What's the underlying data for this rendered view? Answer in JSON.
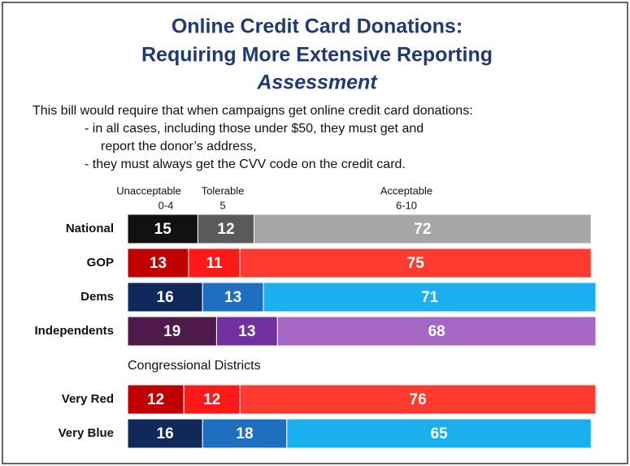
{
  "chart_data": {
    "type": "stacked-bar",
    "title": [
      "Online Credit Card Donations:",
      "Requiring More Extensive Reporting"
    ],
    "subtitle": "Assessment",
    "description": [
      "This bill would require that when campaigns get online credit card donations:",
      "- in all cases, including those under $50, they must get and",
      "report the donor’s address,",
      "- they must always get the CVV code on the credit card."
    ],
    "group_label": "Congressional Districts",
    "categories": [
      "National",
      "GOP",
      "Dems",
      "Independents",
      "Very Red",
      "Very Blue"
    ],
    "xlim": [
      0,
      100
    ],
    "series": [
      {
        "name": "Unacceptable",
        "range": "0-4",
        "colors": [
          "#111111",
          "#c00000",
          "#10285a",
          "#4e1a4c",
          "#c00000",
          "#10285a"
        ],
        "values": [
          15,
          13,
          16,
          19,
          12,
          16
        ]
      },
      {
        "name": "Tolerable",
        "range": "5",
        "colors": [
          "#5a5a5a",
          "#ff1a1a",
          "#1f6fc0",
          "#7030a0",
          "#ff1a1a",
          "#1f6fc0"
        ],
        "values": [
          12,
          11,
          13,
          13,
          12,
          18
        ]
      },
      {
        "name": "Acceptable",
        "range": "6-10",
        "colors": [
          "#a6a6a6",
          "#ff3b2f",
          "#1ab0f0",
          "#a666c4",
          "#ff3b2f",
          "#1ab0f0"
        ],
        "values": [
          72,
          75,
          71,
          68,
          76,
          65
        ]
      }
    ]
  }
}
